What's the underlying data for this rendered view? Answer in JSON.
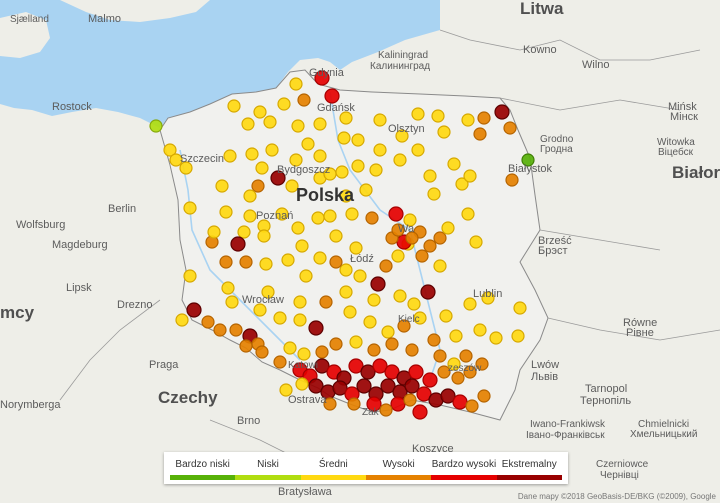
{
  "map": {
    "colors": {
      "sea": "#a9d3f2",
      "land": "#eeeee8",
      "poland": "#f1f1ee",
      "border": "#8a8a8a",
      "river": "#a9d3f2"
    }
  },
  "labels": [
    {
      "id": "litwa",
      "text": "Litwa",
      "kind": "country"
    },
    {
      "id": "bialorus",
      "text": "Białoruś",
      "kind": "country"
    },
    {
      "id": "polska",
      "text": "Polska",
      "kind": "big"
    },
    {
      "id": "niemcy",
      "text": "mcy",
      "kind": "country"
    },
    {
      "id": "czechy",
      "text": "Czechy",
      "kind": "country"
    },
    {
      "id": "siaelland",
      "text": "Sjælland",
      "kind": "small"
    },
    {
      "id": "malmo",
      "text": "Malmo",
      "kind": "city"
    },
    {
      "id": "rostock",
      "text": "Rostock",
      "kind": "city"
    },
    {
      "id": "gdynia",
      "text": "Gdynia",
      "kind": "city"
    },
    {
      "id": "gdansk",
      "text": "Gdańsk",
      "kind": "city"
    },
    {
      "id": "kaliningrad",
      "text": "Kaliningrad",
      "kind": "small"
    },
    {
      "id": "kaliningrad_ru",
      "text": "Калининград",
      "kind": "small"
    },
    {
      "id": "kowno",
      "text": "Kowno",
      "kind": "city"
    },
    {
      "id": "wilno",
      "text": "Wilno",
      "kind": "city"
    },
    {
      "id": "minsk",
      "text": "Mińsk",
      "kind": "city"
    },
    {
      "id": "minsk_ru",
      "text": "Мінск",
      "kind": "city"
    },
    {
      "id": "olsztyn",
      "text": "Olsztyn",
      "kind": "city"
    },
    {
      "id": "grodno",
      "text": "Grodno",
      "kind": "small"
    },
    {
      "id": "grodno_ru",
      "text": "Гродна",
      "kind": "small"
    },
    {
      "id": "witowka",
      "text": "Witowka",
      "kind": "small"
    },
    {
      "id": "witowka_ru",
      "text": "Віцебск",
      "kind": "small"
    },
    {
      "id": "bialystok",
      "text": "Białystok",
      "kind": "city"
    },
    {
      "id": "szczecin",
      "text": "Szczecin",
      "kind": "city"
    },
    {
      "id": "bydgoszcz",
      "text": "Bydgoszcz",
      "kind": "city"
    },
    {
      "id": "berlin",
      "text": "Berlin",
      "kind": "city"
    },
    {
      "id": "wolfsburg",
      "text": "Wolfsburg",
      "kind": "city"
    },
    {
      "id": "magdeburg",
      "text": "Magdeburg",
      "kind": "city"
    },
    {
      "id": "poznan",
      "text": "Poznań",
      "kind": "city"
    },
    {
      "id": "warszawa",
      "text": "Wa",
      "kind": "city"
    },
    {
      "id": "lodz",
      "text": "Łódź",
      "kind": "city"
    },
    {
      "id": "brzesc",
      "text": "Brześć",
      "kind": "city"
    },
    {
      "id": "brzesc_ru",
      "text": "Брэст",
      "kind": "city"
    },
    {
      "id": "lipsk",
      "text": "Lipsk",
      "kind": "city"
    },
    {
      "id": "drezno",
      "text": "Drezno",
      "kind": "city"
    },
    {
      "id": "wroclaw",
      "text": "Wrocław",
      "kind": "city"
    },
    {
      "id": "lublin",
      "text": "Lublin",
      "kind": "city"
    },
    {
      "id": "kielce",
      "text": "Kielc",
      "kind": "small"
    },
    {
      "id": "rowne",
      "text": "Równe",
      "kind": "city"
    },
    {
      "id": "rowne_ru",
      "text": "Рівне",
      "kind": "city"
    },
    {
      "id": "praga",
      "text": "Praga",
      "kind": "city"
    },
    {
      "id": "lwow",
      "text": "Lwów",
      "kind": "city"
    },
    {
      "id": "lwow_ru",
      "text": "Львів",
      "kind": "city"
    },
    {
      "id": "tarnopol",
      "text": "Tarnopol",
      "kind": "city"
    },
    {
      "id": "tarnopol_ru",
      "text": "Тернопіль",
      "kind": "city"
    },
    {
      "id": "norymberga",
      "text": "Norymberga",
      "kind": "city"
    },
    {
      "id": "ostrava",
      "text": "Ostrava",
      "kind": "city"
    },
    {
      "id": "brno",
      "text": "Brno",
      "kind": "city"
    },
    {
      "id": "chmielnicki",
      "text": "Chmielnicki",
      "kind": "small"
    },
    {
      "id": "chmielnicki_ru",
      "text": "Хмельницький",
      "kind": "small"
    },
    {
      "id": "iwano",
      "text": "Iwano-Frankiwsk",
      "kind": "small"
    },
    {
      "id": "iwano_ru",
      "text": "Івано-Франківськ",
      "kind": "small"
    },
    {
      "id": "czerniowce",
      "text": "Czerniowce",
      "kind": "small"
    },
    {
      "id": "czerniowce_ru",
      "text": "Чернівці",
      "kind": "small"
    },
    {
      "id": "koszyce",
      "text": "Koszyce",
      "kind": "city"
    },
    {
      "id": "bratyslawa",
      "text": "Bratysława",
      "kind": "city"
    },
    {
      "id": "rzeszow",
      "text": "zeszów",
      "kind": "small"
    },
    {
      "id": "katowice",
      "text": "Katowi",
      "kind": "small"
    },
    {
      "id": "zakopane",
      "text": "Zak",
      "kind": "small"
    }
  ],
  "legend": {
    "items": [
      {
        "label": "Bardzo niski",
        "color": "#57b108"
      },
      {
        "label": "Niski",
        "color": "#b0dd10"
      },
      {
        "label": "Średni",
        "color": "#ffd911"
      },
      {
        "label": "Wysoki",
        "color": "#e58100"
      },
      {
        "label": "Bardzo wysoki",
        "color": "#e50000"
      },
      {
        "label": "Ekstremalny",
        "color": "#990000"
      }
    ]
  },
  "copyright": "Dane mapy ©2018 GeoBasis-DE/BKG (©2009), Google"
}
